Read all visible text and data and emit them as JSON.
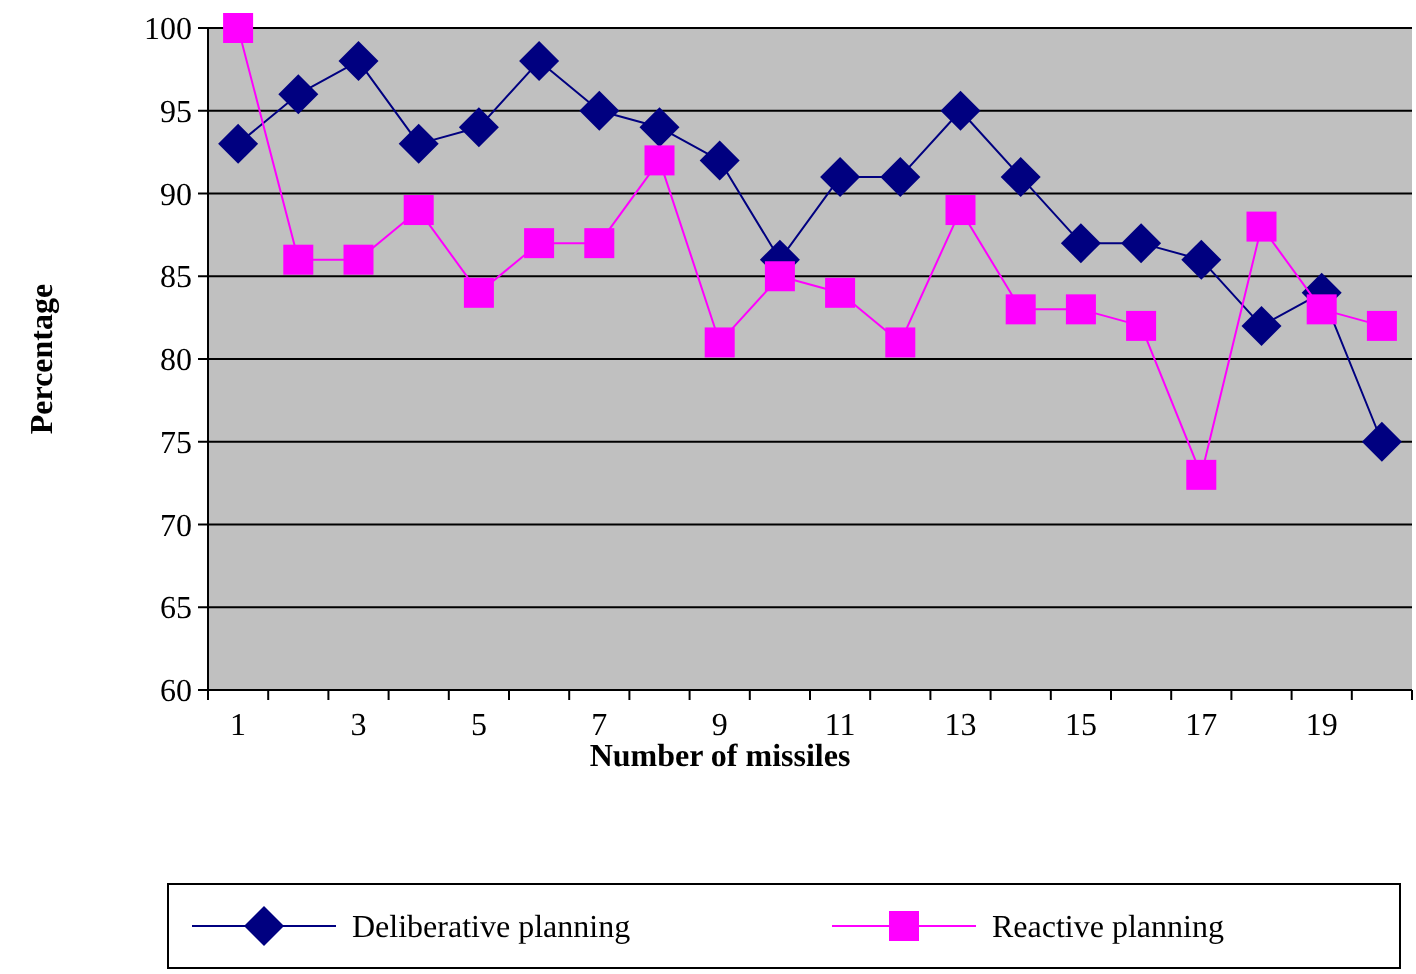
{
  "chart_data": {
    "type": "line",
    "xlabel": "Number of missiles",
    "ylabel": "Percentage",
    "x": [
      1,
      2,
      3,
      4,
      5,
      6,
      7,
      8,
      9,
      10,
      11,
      12,
      13,
      14,
      15,
      16,
      17,
      18,
      19,
      20
    ],
    "xlim": [
      0.5,
      20.5
    ],
    "xticks": [
      {
        "value": 0.5,
        "label": null
      },
      1,
      {
        "value": 1.5,
        "label": null
      },
      {
        "value": 2.5,
        "label": null
      },
      3,
      {
        "value": 3.5,
        "label": null
      },
      {
        "value": 4.5,
        "label": null
      },
      5,
      {
        "value": 5.5,
        "label": null
      },
      {
        "value": 6.5,
        "label": null
      },
      7,
      {
        "value": 7.5,
        "label": null
      },
      {
        "value": 8.5,
        "label": null
      },
      9,
      {
        "value": 9.5,
        "label": null
      },
      {
        "value": 10.5,
        "label": null
      },
      11,
      {
        "value": 11.5,
        "label": null
      },
      {
        "value": 12.5,
        "label": null
      },
      13,
      {
        "value": 13.5,
        "label": null
      },
      {
        "value": 14.5,
        "label": null
      },
      15,
      {
        "value": 15.5,
        "label": null
      },
      {
        "value": 16.5,
        "label": null
      },
      17,
      {
        "value": 17.5,
        "label": null
      },
      {
        "value": 18.5,
        "label": null
      },
      19,
      {
        "value": 19.5,
        "label": null
      },
      {
        "value": 20.5,
        "label": null
      }
    ],
    "series": [
      {
        "name": "Deliberative planning",
        "color": "#000080",
        "marker": "diamond",
        "values": [
          93,
          96,
          98,
          93,
          94,
          98,
          95,
          94,
          92,
          86,
          91,
          91,
          95,
          91,
          87,
          87,
          86,
          82,
          84,
          75
        ]
      },
      {
        "name": "Reactive planning",
        "color": "#ff00ff",
        "marker": "square",
        "values": [
          100,
          86,
          86,
          89,
          84,
          87,
          87,
          92,
          81,
          85,
          84,
          81,
          89,
          83,
          83,
          82,
          73,
          88,
          83,
          82
        ]
      }
    ],
    "ylim": [
      60,
      100
    ],
    "yticks": [
      60,
      65,
      70,
      75,
      80,
      85,
      90,
      95,
      100
    ],
    "grid": "y",
    "legend": "bottom",
    "line_style": "solid"
  }
}
